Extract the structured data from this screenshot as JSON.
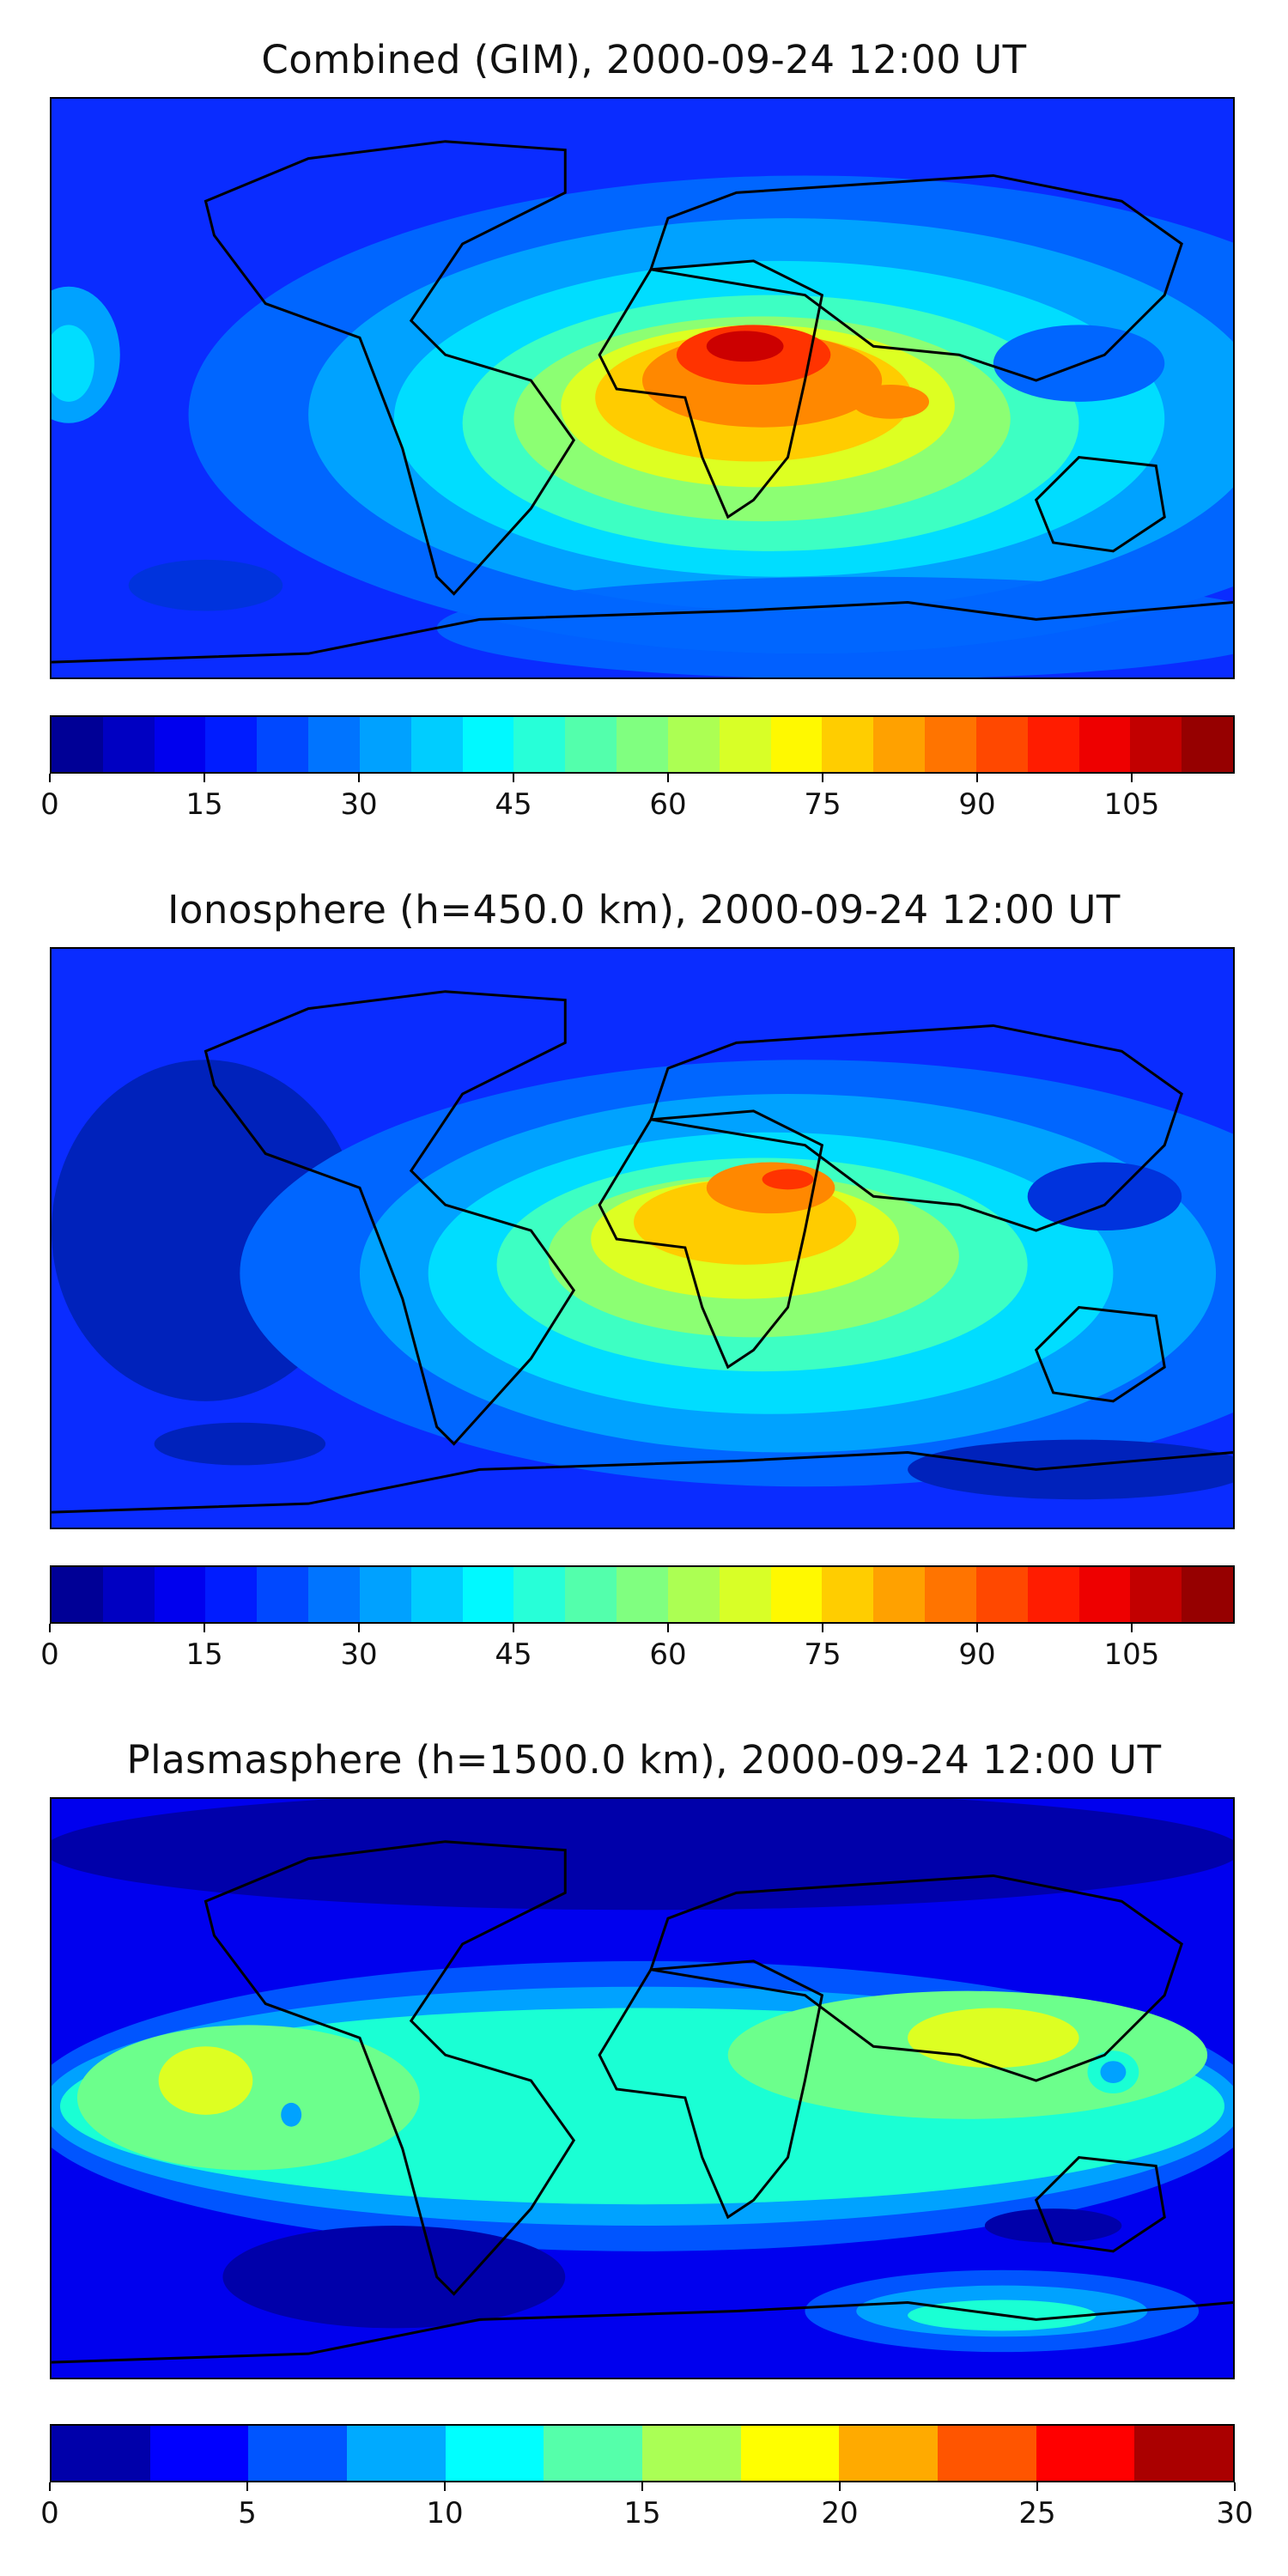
{
  "panels": [
    {
      "title": "Combined (GIM), 2000-09-24 12:00 UT",
      "colorbar": {
        "min": 0,
        "max": 115,
        "levels": 23,
        "tick_values": [
          0,
          15,
          30,
          45,
          60,
          75,
          90,
          105
        ],
        "tick_labels": [
          "0",
          "15",
          "30",
          "45",
          "60",
          "75",
          "90",
          "105"
        ]
      }
    },
    {
      "title": "Ionosphere  (h=450.0 km), 2000-09-24 12:00 UT",
      "colorbar": {
        "min": 0,
        "max": 115,
        "levels": 23,
        "tick_values": [
          0,
          15,
          30,
          45,
          60,
          75,
          90,
          105
        ],
        "tick_labels": [
          "0",
          "15",
          "30",
          "45",
          "60",
          "75",
          "90",
          "105"
        ]
      }
    },
    {
      "title": "Plasmasphere (h=1500.0 km), 2000-09-24 12:00 UT",
      "colorbar": {
        "min": 0,
        "max": 30,
        "levels": 12,
        "tick_values": [
          0,
          5,
          10,
          15,
          20,
          25,
          30
        ],
        "tick_labels": [
          "0",
          "5",
          "10",
          "15",
          "20",
          "25",
          "30"
        ]
      }
    }
  ],
  "colormap": "jet",
  "background_color": "#ffffff"
}
